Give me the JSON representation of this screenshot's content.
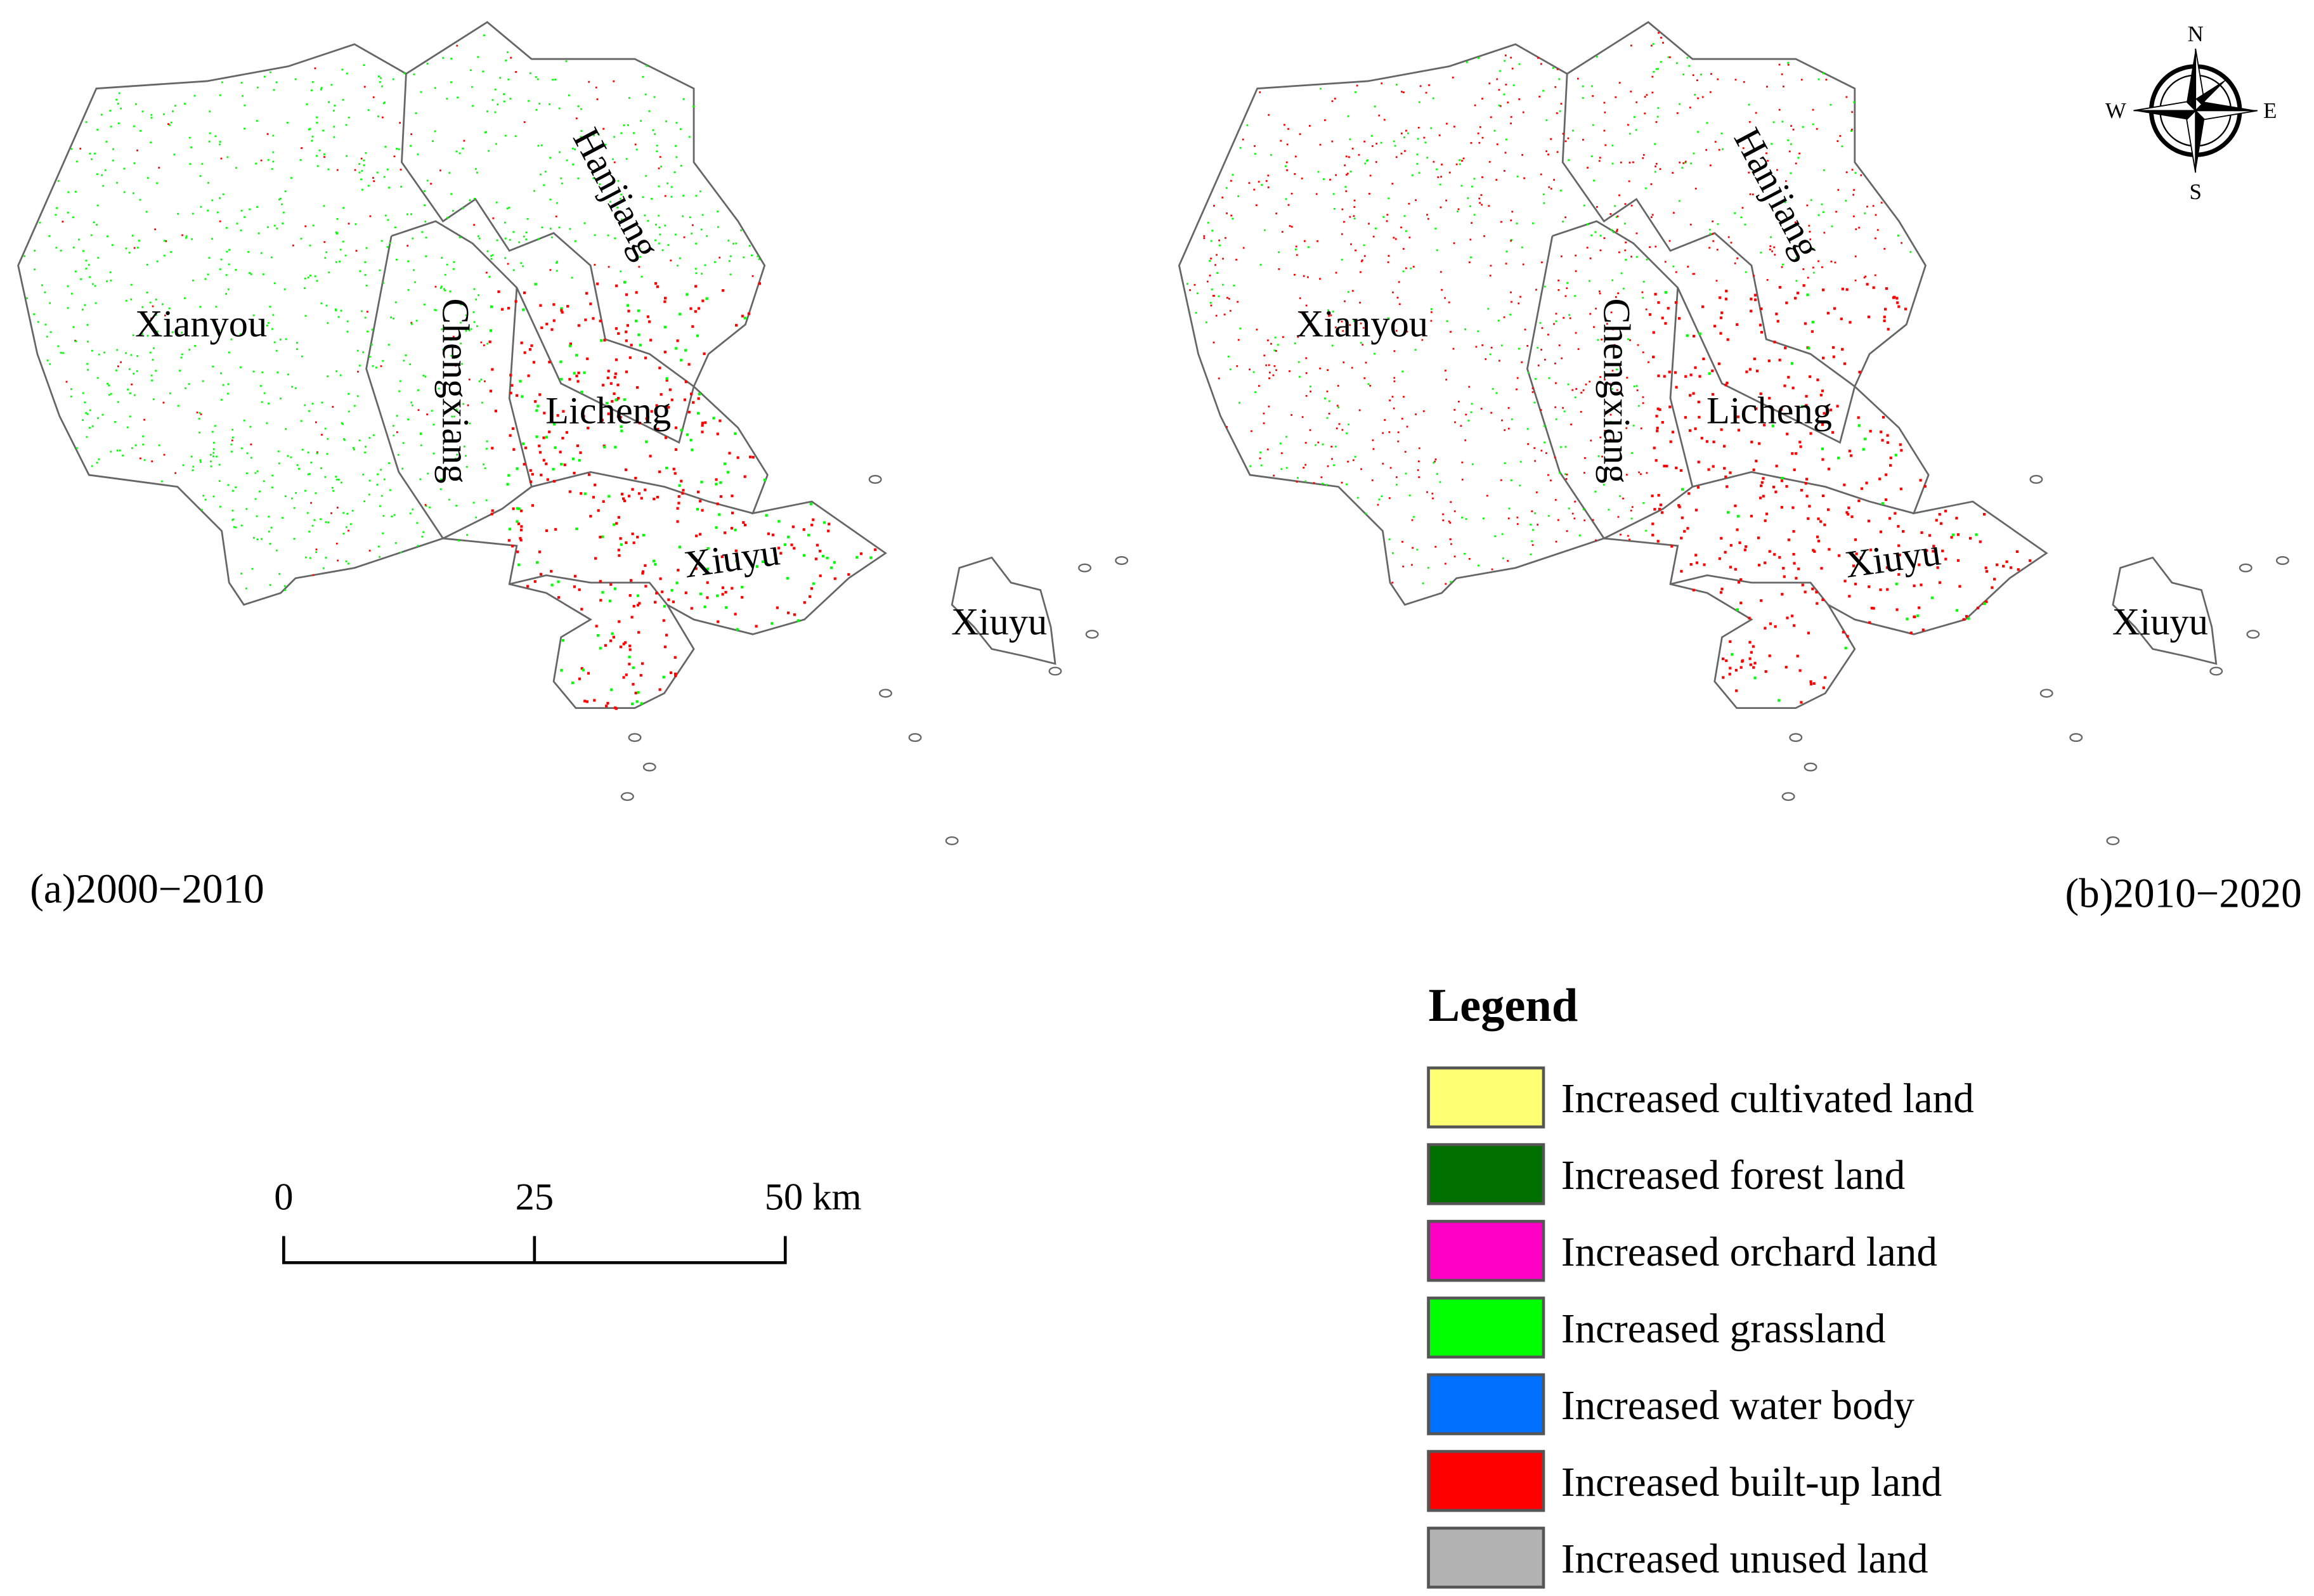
{
  "panels": [
    {
      "caption": "(a)2000−2010",
      "labels": [
        "Xianyou",
        "Chengxiang",
        "Hanjiang",
        "Licheng",
        "Xiuyu",
        "Xiuyu"
      ]
    },
    {
      "caption": "(b)2010−2020",
      "labels": [
        "Xianyou",
        "Chengxiang",
        "Hanjiang",
        "Licheng",
        "Xiuyu",
        "Xiuyu"
      ]
    }
  ],
  "compass": {
    "n": "N",
    "s": "S",
    "e": "E",
    "w": "W"
  },
  "scale_bar": {
    "ticks": [
      "0",
      "25",
      "50 km"
    ]
  },
  "legend": {
    "title": "Legend",
    "items": [
      {
        "label": "Increased cultivated land",
        "color": "#ffff73"
      },
      {
        "label": "Increased forest land",
        "color": "#007000"
      },
      {
        "label": "Increased orchard land",
        "color": "#ff00c5"
      },
      {
        "label": "Increased grassland",
        "color": "#00ff00"
      },
      {
        "label": "Increased water body",
        "color": "#0070ff"
      },
      {
        "label": "Increased built-up land",
        "color": "#ff0000"
      },
      {
        "label": "Increased unused land",
        "color": "#b2b2b2"
      }
    ]
  }
}
